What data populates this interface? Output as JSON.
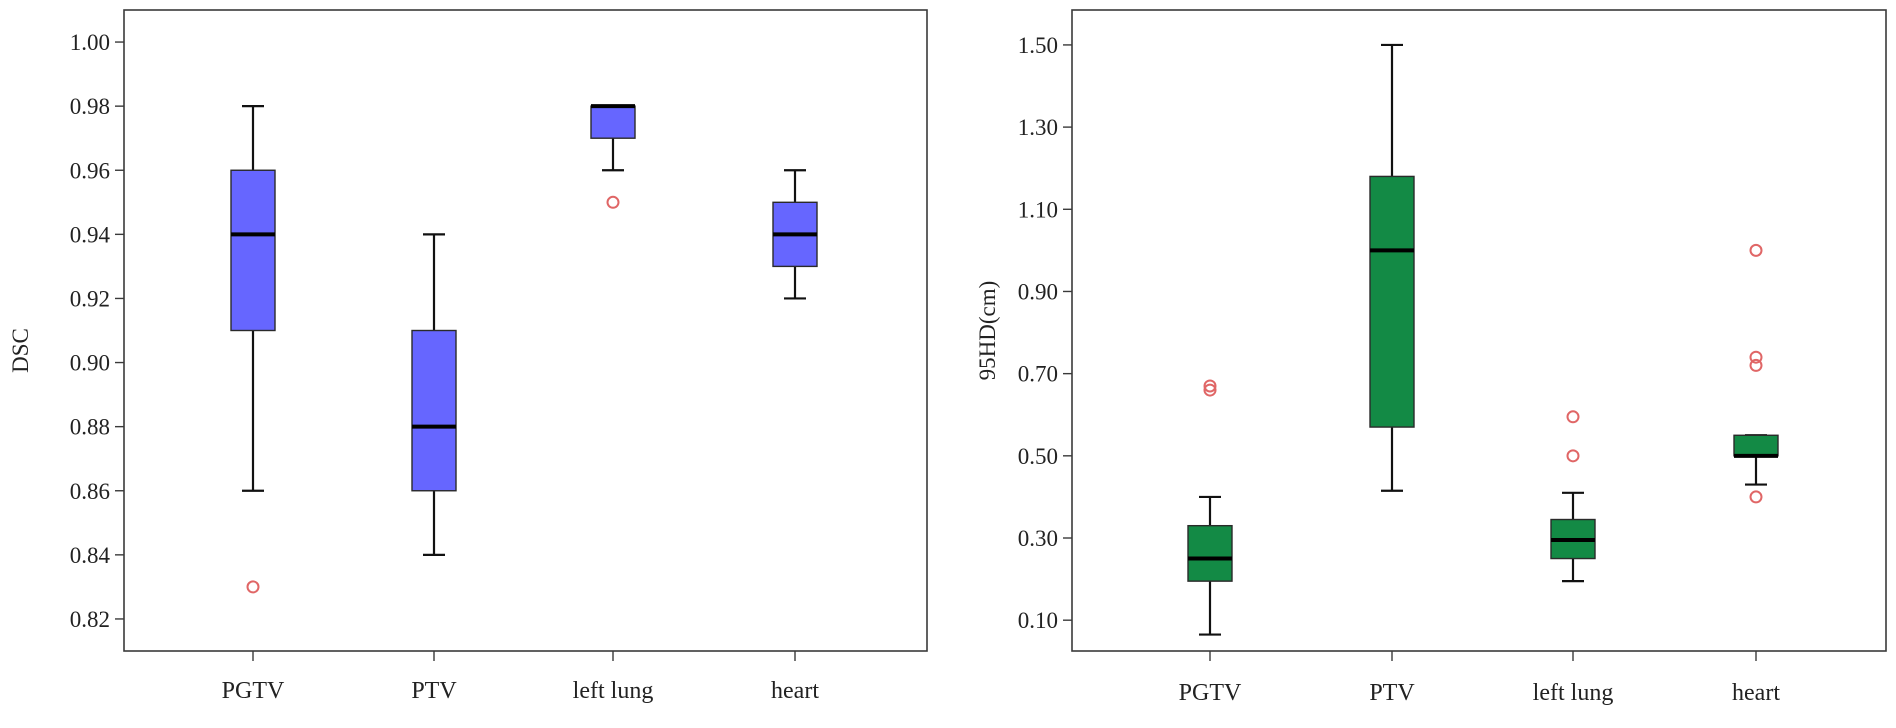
{
  "chart_data": [
    {
      "type": "box",
      "ylabel": "DSC",
      "ylim": [
        0.81,
        1.01
      ],
      "yticks": [
        0.82,
        0.84,
        0.86,
        0.88,
        0.9,
        0.92,
        0.94,
        0.96,
        0.98,
        1.0
      ],
      "ytick_labels": [
        "0.82",
        "0.84",
        "0.86",
        "0.88",
        "0.90",
        "0.92",
        "0.94",
        "0.96",
        "0.98",
        "1.00"
      ],
      "categories": [
        "PGTV",
        "PTV",
        "left lung",
        "heart"
      ],
      "box_color": "#6666ff",
      "outlier_color": "#e06666",
      "boxes": [
        {
          "name": "PGTV",
          "whisker_low": 0.86,
          "q1": 0.91,
          "median": 0.94,
          "q3": 0.96,
          "whisker_high": 0.98,
          "outliers": [
            0.83
          ]
        },
        {
          "name": "PTV",
          "whisker_low": 0.84,
          "q1": 0.86,
          "median": 0.88,
          "q3": 0.91,
          "whisker_high": 0.94,
          "outliers": []
        },
        {
          "name": "left lung",
          "whisker_low": 0.96,
          "q1": 0.97,
          "median": 0.98,
          "q3": 0.98,
          "whisker_high": 0.98,
          "outliers": [
            0.95
          ]
        },
        {
          "name": "heart",
          "whisker_low": 0.92,
          "q1": 0.93,
          "median": 0.94,
          "q3": 0.95,
          "whisker_high": 0.96,
          "outliers": []
        }
      ]
    },
    {
      "type": "box",
      "ylabel": "95HD(cm)",
      "ylim": [
        0.025,
        1.585
      ],
      "yticks": [
        0.1,
        0.3,
        0.5,
        0.7,
        0.9,
        1.1,
        1.3,
        1.5
      ],
      "ytick_labels": [
        "0.10",
        "0.30",
        "0.50",
        "0.70",
        "0.90",
        "1.10",
        "1.30",
        "1.50"
      ],
      "categories": [
        "PGTV",
        "PTV",
        "left lung",
        "heart"
      ],
      "box_color": "#138a45",
      "outlier_color": "#e06666",
      "boxes": [
        {
          "name": "PGTV",
          "whisker_low": 0.065,
          "q1": 0.195,
          "median": 0.25,
          "q3": 0.33,
          "whisker_high": 0.4,
          "outliers": [
            0.66,
            0.67
          ]
        },
        {
          "name": "PTV",
          "whisker_low": 0.415,
          "q1": 0.57,
          "median": 1.0,
          "q3": 1.18,
          "whisker_high": 1.5,
          "outliers": []
        },
        {
          "name": "left lung",
          "whisker_low": 0.195,
          "q1": 0.25,
          "median": 0.295,
          "q3": 0.345,
          "whisker_high": 0.41,
          "outliers": [
            0.5,
            0.595
          ]
        },
        {
          "name": "heart",
          "whisker_low": 0.43,
          "q1": 0.5,
          "median": 0.5,
          "q3": 0.55,
          "whisker_high": 0.55,
          "outliers": [
            0.4,
            0.72,
            0.74,
            1.0
          ]
        }
      ]
    }
  ]
}
